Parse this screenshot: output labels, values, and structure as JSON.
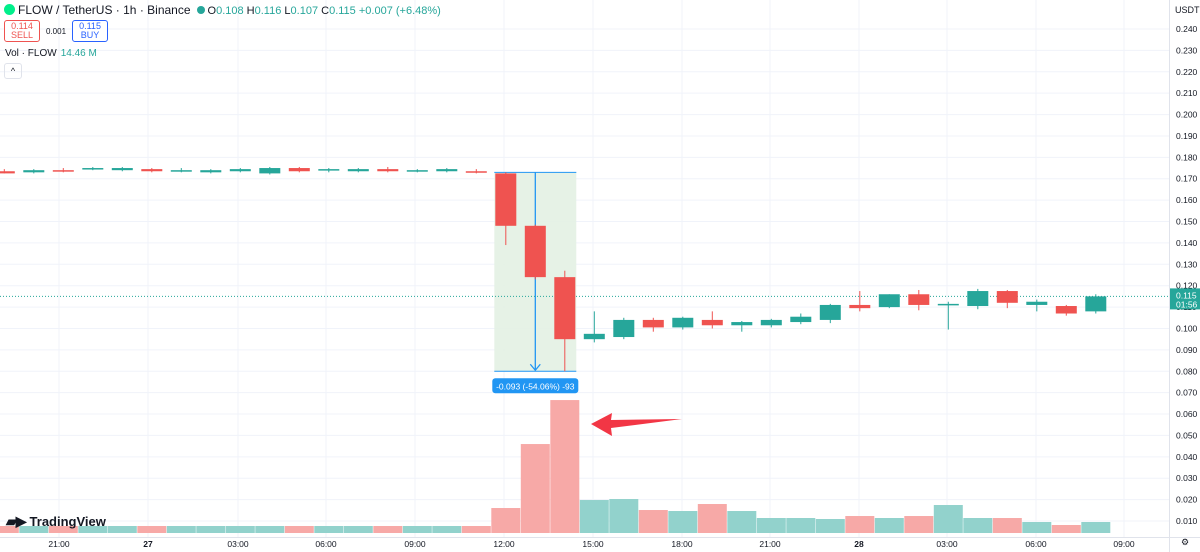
{
  "header": {
    "symbol": "FLOW / TetherUS · 1h · Binance",
    "o_label": "O",
    "o": "0.108",
    "h_label": "H",
    "h": "0.116",
    "l_label": "L",
    "l": "0.107",
    "c_label": "C",
    "c": "0.115",
    "change": "+0.007 (+6.48%)"
  },
  "trade": {
    "sell_price": "0.114",
    "sell_label": "SELL",
    "spread": "0.001",
    "buy_price": "0.115",
    "buy_label": "BUY"
  },
  "volume_legend": {
    "label": "Vol · FLOW",
    "value": "14.46 M"
  },
  "collapse_label": "^",
  "axis_unit": "USDT",
  "brand": "TradingView",
  "colors": {
    "up": "#26a69a",
    "down": "#ef5350",
    "vol_up": "#92d2cc",
    "vol_down": "#f7a9a7",
    "measure_fill": "#e3f1e3",
    "measure_line": "#2196f3",
    "arrow": "#f23645"
  },
  "chart_data": {
    "type": "candlestick",
    "timeframe": "1h",
    "y_ticks": [
      "0.240",
      "0.230",
      "0.220",
      "0.210",
      "0.200",
      "0.190",
      "0.180",
      "0.170",
      "0.160",
      "0.150",
      "0.140",
      "0.130",
      "0.120",
      "0.110",
      "0.100",
      "0.090",
      "0.080",
      "0.070",
      "0.060",
      "0.050",
      "0.040",
      "0.030",
      "0.020",
      "0.010"
    ],
    "ylim": [
      0.004,
      0.246
    ],
    "x_ticks": [
      "21:00",
      "27",
      "03:00",
      "06:00",
      "09:00",
      "12:00",
      "15:00",
      "18:00",
      "21:00",
      "28",
      "03:00",
      "06:00",
      "09:00"
    ],
    "candles": [
      {
        "o": 0.1735,
        "h": 0.1745,
        "l": 0.1725,
        "c": 0.1725,
        "v": 0.0035
      },
      {
        "o": 0.173,
        "h": 0.1745,
        "l": 0.1725,
        "c": 0.174,
        "v": 0.0035
      },
      {
        "o": 0.174,
        "h": 0.175,
        "l": 0.173,
        "c": 0.1735,
        "v": 0.0035
      },
      {
        "o": 0.1745,
        "h": 0.1755,
        "l": 0.174,
        "c": 0.175,
        "v": 0.0035
      },
      {
        "o": 0.174,
        "h": 0.1755,
        "l": 0.1735,
        "c": 0.175,
        "v": 0.0035
      },
      {
        "o": 0.1745,
        "h": 0.175,
        "l": 0.173,
        "c": 0.1735,
        "v": 0.0035
      },
      {
        "o": 0.1735,
        "h": 0.175,
        "l": 0.173,
        "c": 0.174,
        "v": 0.0035
      },
      {
        "o": 0.173,
        "h": 0.1745,
        "l": 0.1725,
        "c": 0.174,
        "v": 0.0035
      },
      {
        "o": 0.1735,
        "h": 0.175,
        "l": 0.173,
        "c": 0.1745,
        "v": 0.0035
      },
      {
        "o": 0.1725,
        "h": 0.1755,
        "l": 0.172,
        "c": 0.175,
        "v": 0.0035
      },
      {
        "o": 0.175,
        "h": 0.1755,
        "l": 0.173,
        "c": 0.1735,
        "v": 0.0035
      },
      {
        "o": 0.174,
        "h": 0.175,
        "l": 0.173,
        "c": 0.1745,
        "v": 0.0035
      },
      {
        "o": 0.1735,
        "h": 0.175,
        "l": 0.173,
        "c": 0.1745,
        "v": 0.0035
      },
      {
        "o": 0.1745,
        "h": 0.1755,
        "l": 0.173,
        "c": 0.1735,
        "v": 0.0035
      },
      {
        "o": 0.1735,
        "h": 0.1745,
        "l": 0.173,
        "c": 0.174,
        "v": 0.0035
      },
      {
        "o": 0.1735,
        "h": 0.175,
        "l": 0.173,
        "c": 0.1745,
        "v": 0.0035
      },
      {
        "o": 0.1735,
        "h": 0.1745,
        "l": 0.1725,
        "c": 0.173,
        "v": 0.0035
      },
      {
        "o": 0.1725,
        "h": 0.173,
        "l": 0.139,
        "c": 0.148,
        "v": 0.0125
      },
      {
        "o": 0.148,
        "h": 0.1485,
        "l": 0.123,
        "c": 0.124,
        "v": 0.0445
      },
      {
        "o": 0.124,
        "h": 0.127,
        "l": 0.08,
        "c": 0.095,
        "v": 0.0665
      },
      {
        "o": 0.095,
        "h": 0.108,
        "l": 0.0935,
        "c": 0.0975,
        "v": 0.0165
      },
      {
        "o": 0.096,
        "h": 0.105,
        "l": 0.095,
        "c": 0.104,
        "v": 0.017
      },
      {
        "o": 0.104,
        "h": 0.105,
        "l": 0.0985,
        "c": 0.1005,
        "v": 0.0115
      },
      {
        "o": 0.1005,
        "h": 0.1055,
        "l": 0.0995,
        "c": 0.105,
        "v": 0.011
      },
      {
        "o": 0.104,
        "h": 0.108,
        "l": 0.1,
        "c": 0.1015,
        "v": 0.0145
      },
      {
        "o": 0.1015,
        "h": 0.1035,
        "l": 0.0985,
        "c": 0.103,
        "v": 0.011
      },
      {
        "o": 0.1015,
        "h": 0.1045,
        "l": 0.1005,
        "c": 0.104,
        "v": 0.0075
      },
      {
        "o": 0.103,
        "h": 0.107,
        "l": 0.102,
        "c": 0.1055,
        "v": 0.0075
      },
      {
        "o": 0.104,
        "h": 0.1115,
        "l": 0.1025,
        "c": 0.111,
        "v": 0.007
      },
      {
        "o": 0.111,
        "h": 0.1175,
        "l": 0.108,
        "c": 0.1095,
        "v": 0.0085
      },
      {
        "o": 0.11,
        "h": 0.116,
        "l": 0.1095,
        "c": 0.116,
        "v": 0.0075
      },
      {
        "o": 0.116,
        "h": 0.118,
        "l": 0.1085,
        "c": 0.111,
        "v": 0.0085
      },
      {
        "o": 0.111,
        "h": 0.1125,
        "l": 0.0995,
        "c": 0.1115,
        "v": 0.014
      },
      {
        "o": 0.1105,
        "h": 0.1185,
        "l": 0.109,
        "c": 0.1175,
        "v": 0.0075
      },
      {
        "o": 0.1175,
        "h": 0.118,
        "l": 0.1095,
        "c": 0.112,
        "v": 0.0075
      },
      {
        "o": 0.111,
        "h": 0.1135,
        "l": 0.108,
        "c": 0.1125,
        "v": 0.0055
      },
      {
        "o": 0.1105,
        "h": 0.111,
        "l": 0.106,
        "c": 0.107,
        "v": 0.004
      },
      {
        "o": 0.108,
        "h": 0.116,
        "l": 0.107,
        "c": 0.115,
        "v": 0.0055
      }
    ],
    "current_price": {
      "value": "0.115",
      "countdown": "01:56",
      "y": 0.115
    },
    "measure": {
      "label": "-0.093 (-54.06%) -93",
      "from_index": 17,
      "to_index": 19,
      "top": 0.173,
      "bottom": 0.08
    }
  }
}
